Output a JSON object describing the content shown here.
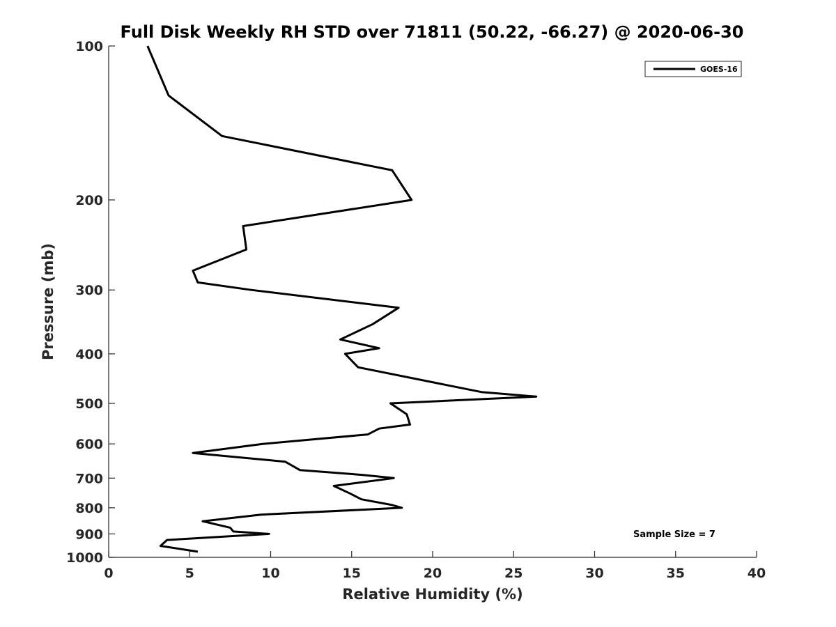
{
  "chart_data": {
    "type": "line",
    "title": "Full Disk Weekly RH STD over 71811 (50.22, -66.27) @ 2020-06-30",
    "xlabel": "Relative Humidity (%)",
    "ylabel": "Pressure (mb)",
    "xlim": [
      0,
      40
    ],
    "ylim": [
      100,
      1000
    ],
    "y_scale": "log",
    "y_reversed": true,
    "x_ticks": [
      0,
      5,
      10,
      15,
      20,
      25,
      30,
      35,
      40
    ],
    "x_tick_labels": [
      "0",
      "5",
      "10",
      "15",
      "20",
      "25",
      "30",
      "35",
      "40"
    ],
    "y_ticks": [
      100,
      200,
      300,
      400,
      500,
      600,
      700,
      800,
      900,
      1000
    ],
    "y_tick_labels": [
      "100",
      "200",
      "300",
      "400",
      "500",
      "600",
      "700",
      "800",
      "900",
      "1000"
    ],
    "grid": false,
    "legend_position": "top-right",
    "annotation": "Sample Size = 7",
    "series": [
      {
        "name": "GOES-16",
        "color": "#000000",
        "points": [
          [
            2.4,
            100
          ],
          [
            3.7,
            125
          ],
          [
            7.0,
            150
          ],
          [
            17.5,
            175
          ],
          [
            18.7,
            200
          ],
          [
            8.3,
            225
          ],
          [
            8.5,
            250
          ],
          [
            5.2,
            275
          ],
          [
            5.5,
            290
          ],
          [
            8.8,
            300
          ],
          [
            17.9,
            325
          ],
          [
            16.3,
            350
          ],
          [
            14.3,
            375
          ],
          [
            16.7,
            390
          ],
          [
            14.6,
            400
          ],
          [
            15.4,
            425
          ],
          [
            23.0,
            475
          ],
          [
            26.4,
            485
          ],
          [
            17.4,
            500
          ],
          [
            18.4,
            525
          ],
          [
            18.6,
            550
          ],
          [
            16.7,
            560
          ],
          [
            16.0,
            575
          ],
          [
            9.5,
            600
          ],
          [
            5.2,
            625
          ],
          [
            10.9,
            650
          ],
          [
            11.8,
            675
          ],
          [
            15.7,
            690
          ],
          [
            17.6,
            700
          ],
          [
            13.9,
            725
          ],
          [
            14.9,
            750
          ],
          [
            15.6,
            770
          ],
          [
            17.5,
            790
          ],
          [
            18.1,
            800
          ],
          [
            9.4,
            825
          ],
          [
            5.8,
            850
          ],
          [
            7.5,
            875
          ],
          [
            7.7,
            890
          ],
          [
            9.9,
            900
          ],
          [
            3.6,
            925
          ],
          [
            3.2,
            950
          ],
          [
            5.5,
            975
          ]
        ]
      }
    ]
  }
}
